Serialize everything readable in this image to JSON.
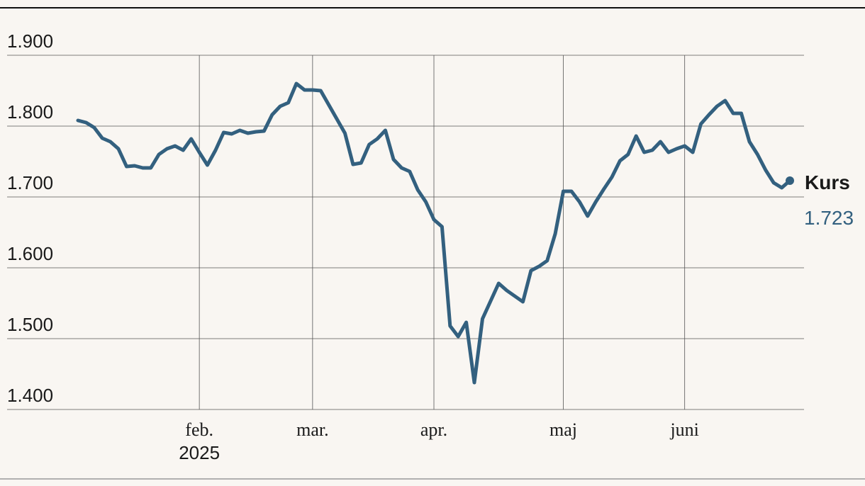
{
  "chart_data": {
    "type": "line",
    "categories": [
      null,
      null,
      null,
      null,
      null,
      null,
      null,
      null,
      null,
      null,
      null,
      null,
      null,
      null,
      null,
      "feb.",
      null,
      null,
      null,
      null,
      null,
      null,
      null,
      null,
      null,
      null,
      null,
      null,
      null,
      "mar.",
      null,
      null,
      null,
      null,
      null,
      null,
      null,
      null,
      null,
      null,
      null,
      null,
      null,
      null,
      "apr.",
      null,
      null,
      null,
      null,
      null,
      null,
      null,
      null,
      null,
      null,
      null,
      null,
      null,
      null,
      null,
      "maj",
      null,
      null,
      null,
      null,
      null,
      null,
      null,
      null,
      null,
      null,
      null,
      null,
      null,
      null,
      "juni",
      null,
      null,
      null,
      null,
      null,
      null,
      null,
      null,
      null,
      null,
      null,
      null,
      null
    ],
    "year_label": "2025",
    "series": [
      {
        "name": "Kurs",
        "color": "#33607f",
        "values": [
          1808,
          1805,
          1798,
          1783,
          1778,
          1768,
          1743,
          1744,
          1741,
          1741,
          1760,
          1768,
          1772,
          1766,
          1782,
          1763,
          1745,
          1766,
          1791,
          1789,
          1794,
          1790,
          1792,
          1793,
          1816,
          1828,
          1833,
          1860,
          1851,
          1851,
          1850,
          1830,
          1810,
          1790,
          1746,
          1748,
          1774,
          1782,
          1794,
          1753,
          1741,
          1736,
          1710,
          1693,
          1668,
          1658,
          1518,
          1503,
          1523,
          1438,
          1528,
          1553,
          1578,
          1568,
          1560,
          1552,
          1596,
          1602,
          1610,
          1648,
          1708,
          1708,
          1693,
          1673,
          1693,
          1711,
          1728,
          1751,
          1760,
          1786,
          1763,
          1766,
          1778,
          1763,
          1768,
          1772,
          1763,
          1803,
          1816,
          1828,
          1836,
          1818,
          1818,
          1778,
          1760,
          1738,
          1720,
          1713,
          1723
        ],
        "value_labels": [
          null,
          null,
          null,
          null,
          null,
          null,
          null,
          null,
          null,
          null,
          null,
          null,
          null,
          null,
          null,
          null,
          null,
          null,
          null,
          null,
          null,
          null,
          null,
          null,
          null,
          null,
          null,
          null,
          null,
          null,
          null,
          null,
          null,
          null,
          null,
          null,
          null,
          null,
          null,
          null,
          null,
          null,
          null,
          null,
          null,
          null,
          null,
          null,
          null,
          null,
          null,
          null,
          null,
          null,
          null,
          null,
          null,
          null,
          null,
          null,
          null,
          null,
          null,
          null,
          null,
          null,
          null,
          null,
          null,
          null,
          null,
          null,
          null,
          null,
          null,
          null,
          null,
          null,
          null,
          null,
          null,
          null,
          null,
          null,
          null,
          null,
          null,
          null,
          "1.723"
        ]
      }
    ],
    "ylim": [
      1400,
      1900
    ],
    "yticks": [
      {
        "value": 1400,
        "label": "1.400"
      },
      {
        "value": 1500,
        "label": "1.500"
      },
      {
        "value": 1600,
        "label": "1.600"
      },
      {
        "value": 1700,
        "label": "1.700"
      },
      {
        "value": 1800,
        "label": "1.800"
      },
      {
        "value": 1900,
        "label": "1.900"
      }
    ],
    "grid": true
  }
}
